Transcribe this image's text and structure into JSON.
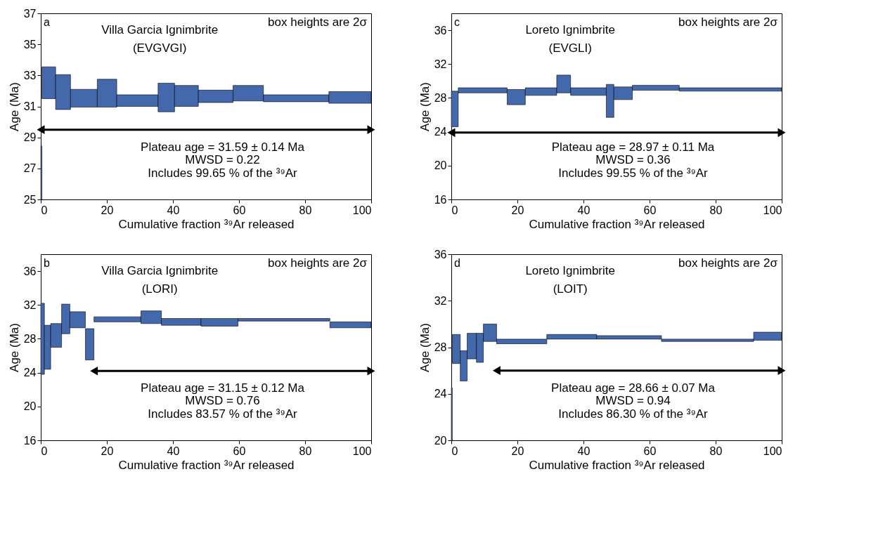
{
  "chart_data": [
    {
      "type": "histogram",
      "title": "Villa Garcia Ignimbrite",
      "subtitle": "(EVGVGI)",
      "xlabel": "Cumulative fraction ³⁹Ar released",
      "ylabel": "Age (Ma)",
      "annotations": [
        "a",
        "box heights are 2σ",
        "Plateau age = 31.59 ± 0.14 Ma",
        "MWSD = 0.22",
        "Includes 99.65 % of the ³⁹Ar"
      ],
      "xlim": [
        0,
        100
      ],
      "xticks": [
        0,
        20,
        40,
        60,
        80,
        100
      ],
      "ylim": [
        25,
        37
      ],
      "yticks": [
        25,
        27,
        29,
        31,
        33,
        35,
        37
      ],
      "series": [
        {
          "color": "#4468ac",
          "bins": [
            0,
            0.35,
            4.5,
            9.0,
            17.1,
            23.0,
            35.5,
            40.5,
            47.7,
            58.2,
            67.4,
            87.2,
            100
          ],
          "base": [
            25,
            31.5,
            30.8,
            30.95,
            30.95,
            31.0,
            30.65,
            31.0,
            31.25,
            31.35,
            31.3,
            31.2
          ],
          "values": [
            3.45,
            2.05,
            2.25,
            1.15,
            1.8,
            0.75,
            1.85,
            1.35,
            0.8,
            1.0,
            0.45,
            0.75
          ]
        },
        {
          "type": "line",
          "color": "#000000",
          "marker": "triangle",
          "x": [
            0,
            100
          ],
          "values": [
            29.5,
            29.5
          ]
        }
      ]
    },
    {
      "type": "histogram",
      "title": "Loreto Ignimbrite",
      "subtitle": "(EVGLI)",
      "xlabel": "Cumulative fraction ³⁹Ar released",
      "ylabel": "Age (Ma)",
      "annotations": [
        "c",
        "box heights are 2σ",
        "Plateau age = 28.97 ± 0.11 Ma",
        "MWSD = 0.36",
        "Includes 99.55 % of the ³⁹Ar"
      ],
      "xlim": [
        0,
        100
      ],
      "xticks": [
        0,
        20,
        40,
        60,
        80,
        100
      ],
      "ylim": [
        16,
        38
      ],
      "yticks": [
        16,
        20,
        24,
        28,
        32,
        36
      ],
      "series": [
        {
          "color": "#4468ac",
          "bins": [
            0,
            2.1,
            16.9,
            22.4,
            31.9,
            36.1,
            46.9,
            49.2,
            54.8,
            69.0,
            100
          ],
          "base": [
            24.6,
            28.6,
            27.2,
            28.3,
            28.6,
            28.3,
            25.7,
            27.8,
            28.9,
            28.8
          ],
          "values": [
            4.2,
            0.6,
            1.8,
            0.9,
            2.1,
            0.9,
            3.9,
            1.5,
            0.6,
            0.4
          ]
        },
        {
          "type": "line",
          "color": "#000000",
          "marker": "triangle",
          "x": [
            0,
            100
          ],
          "values": [
            23.9,
            23.9
          ]
        }
      ]
    },
    {
      "type": "histogram",
      "title": "Villa Garcia Ignimbrite",
      "subtitle": "(LORI)",
      "xlabel": "Cumulative fraction ³⁹Ar released",
      "ylabel": "Age (Ma)",
      "annotations": [
        "b",
        "box heights are 2σ",
        "Plateau age = 31.15 ± 0.12 Ma",
        "MWSD = 0.76",
        "Includes 83.57 % of the ³⁹Ar"
      ],
      "xlim": [
        0,
        100
      ],
      "xticks": [
        0,
        20,
        40,
        60,
        80,
        100
      ],
      "ylim": [
        16,
        38
      ],
      "yticks": [
        16,
        20,
        24,
        28,
        32,
        36
      ],
      "series": [
        {
          "color": "#4468ac",
          "bins": [
            0,
            1.1,
            3.0,
            6.3,
            8.8,
            13.5,
            16.1,
            30.3,
            36.5,
            48.5,
            59.7,
            87.5,
            100
          ],
          "base": [
            23.8,
            24.4,
            27.0,
            28.6,
            29.3,
            25.5,
            30.0,
            29.8,
            29.6,
            29.5,
            30.1,
            29.3
          ],
          "values": [
            8.4,
            5.2,
            2.8,
            3.5,
            1.9,
            3.7,
            0.6,
            1.5,
            0.8,
            0.9,
            0.3,
            0.7
          ]
        },
        {
          "type": "line",
          "color": "#000000",
          "marker": "triangle",
          "x": [
            16.1,
            100
          ],
          "values": [
            24.2,
            24.2
          ]
        }
      ]
    },
    {
      "type": "histogram",
      "title": "Loreto Ignimbrite",
      "subtitle": "(LOIT)",
      "xlabel": "Cumulative fraction ³⁹Ar released",
      "ylabel": "Age (Ma)",
      "annotations": [
        "d",
        "box heights are 2σ",
        "Plateau age = 28.66 ± 0.07 Ma",
        "MWSD = 0.94",
        "Includes 86.30 % of the ³⁹Ar"
      ],
      "xlim": [
        0,
        100
      ],
      "xticks": [
        0,
        20,
        40,
        60,
        80,
        100
      ],
      "ylim": [
        20,
        36
      ],
      "yticks": [
        20,
        24,
        28,
        32,
        36
      ],
      "series": [
        {
          "color": "#4468ac",
          "bins": [
            0,
            0.3,
            2.7,
            4.8,
            7.6,
            9.7,
            13.7,
            28.9,
            44.0,
            63.6,
            91.5,
            100
          ],
          "base": [
            20,
            26.6,
            25.1,
            27.0,
            26.7,
            28.5,
            28.3,
            28.7,
            28.7,
            28.5,
            28.6
          ],
          "values": [
            4.5,
            2.5,
            2.6,
            2.2,
            2.5,
            1.5,
            0.4,
            0.4,
            0.3,
            0.2,
            0.7
          ]
        },
        {
          "type": "line",
          "color": "#000000",
          "marker": "triangle",
          "x": [
            13.7,
            100
          ],
          "values": [
            26.0,
            26.0
          ]
        }
      ]
    }
  ]
}
